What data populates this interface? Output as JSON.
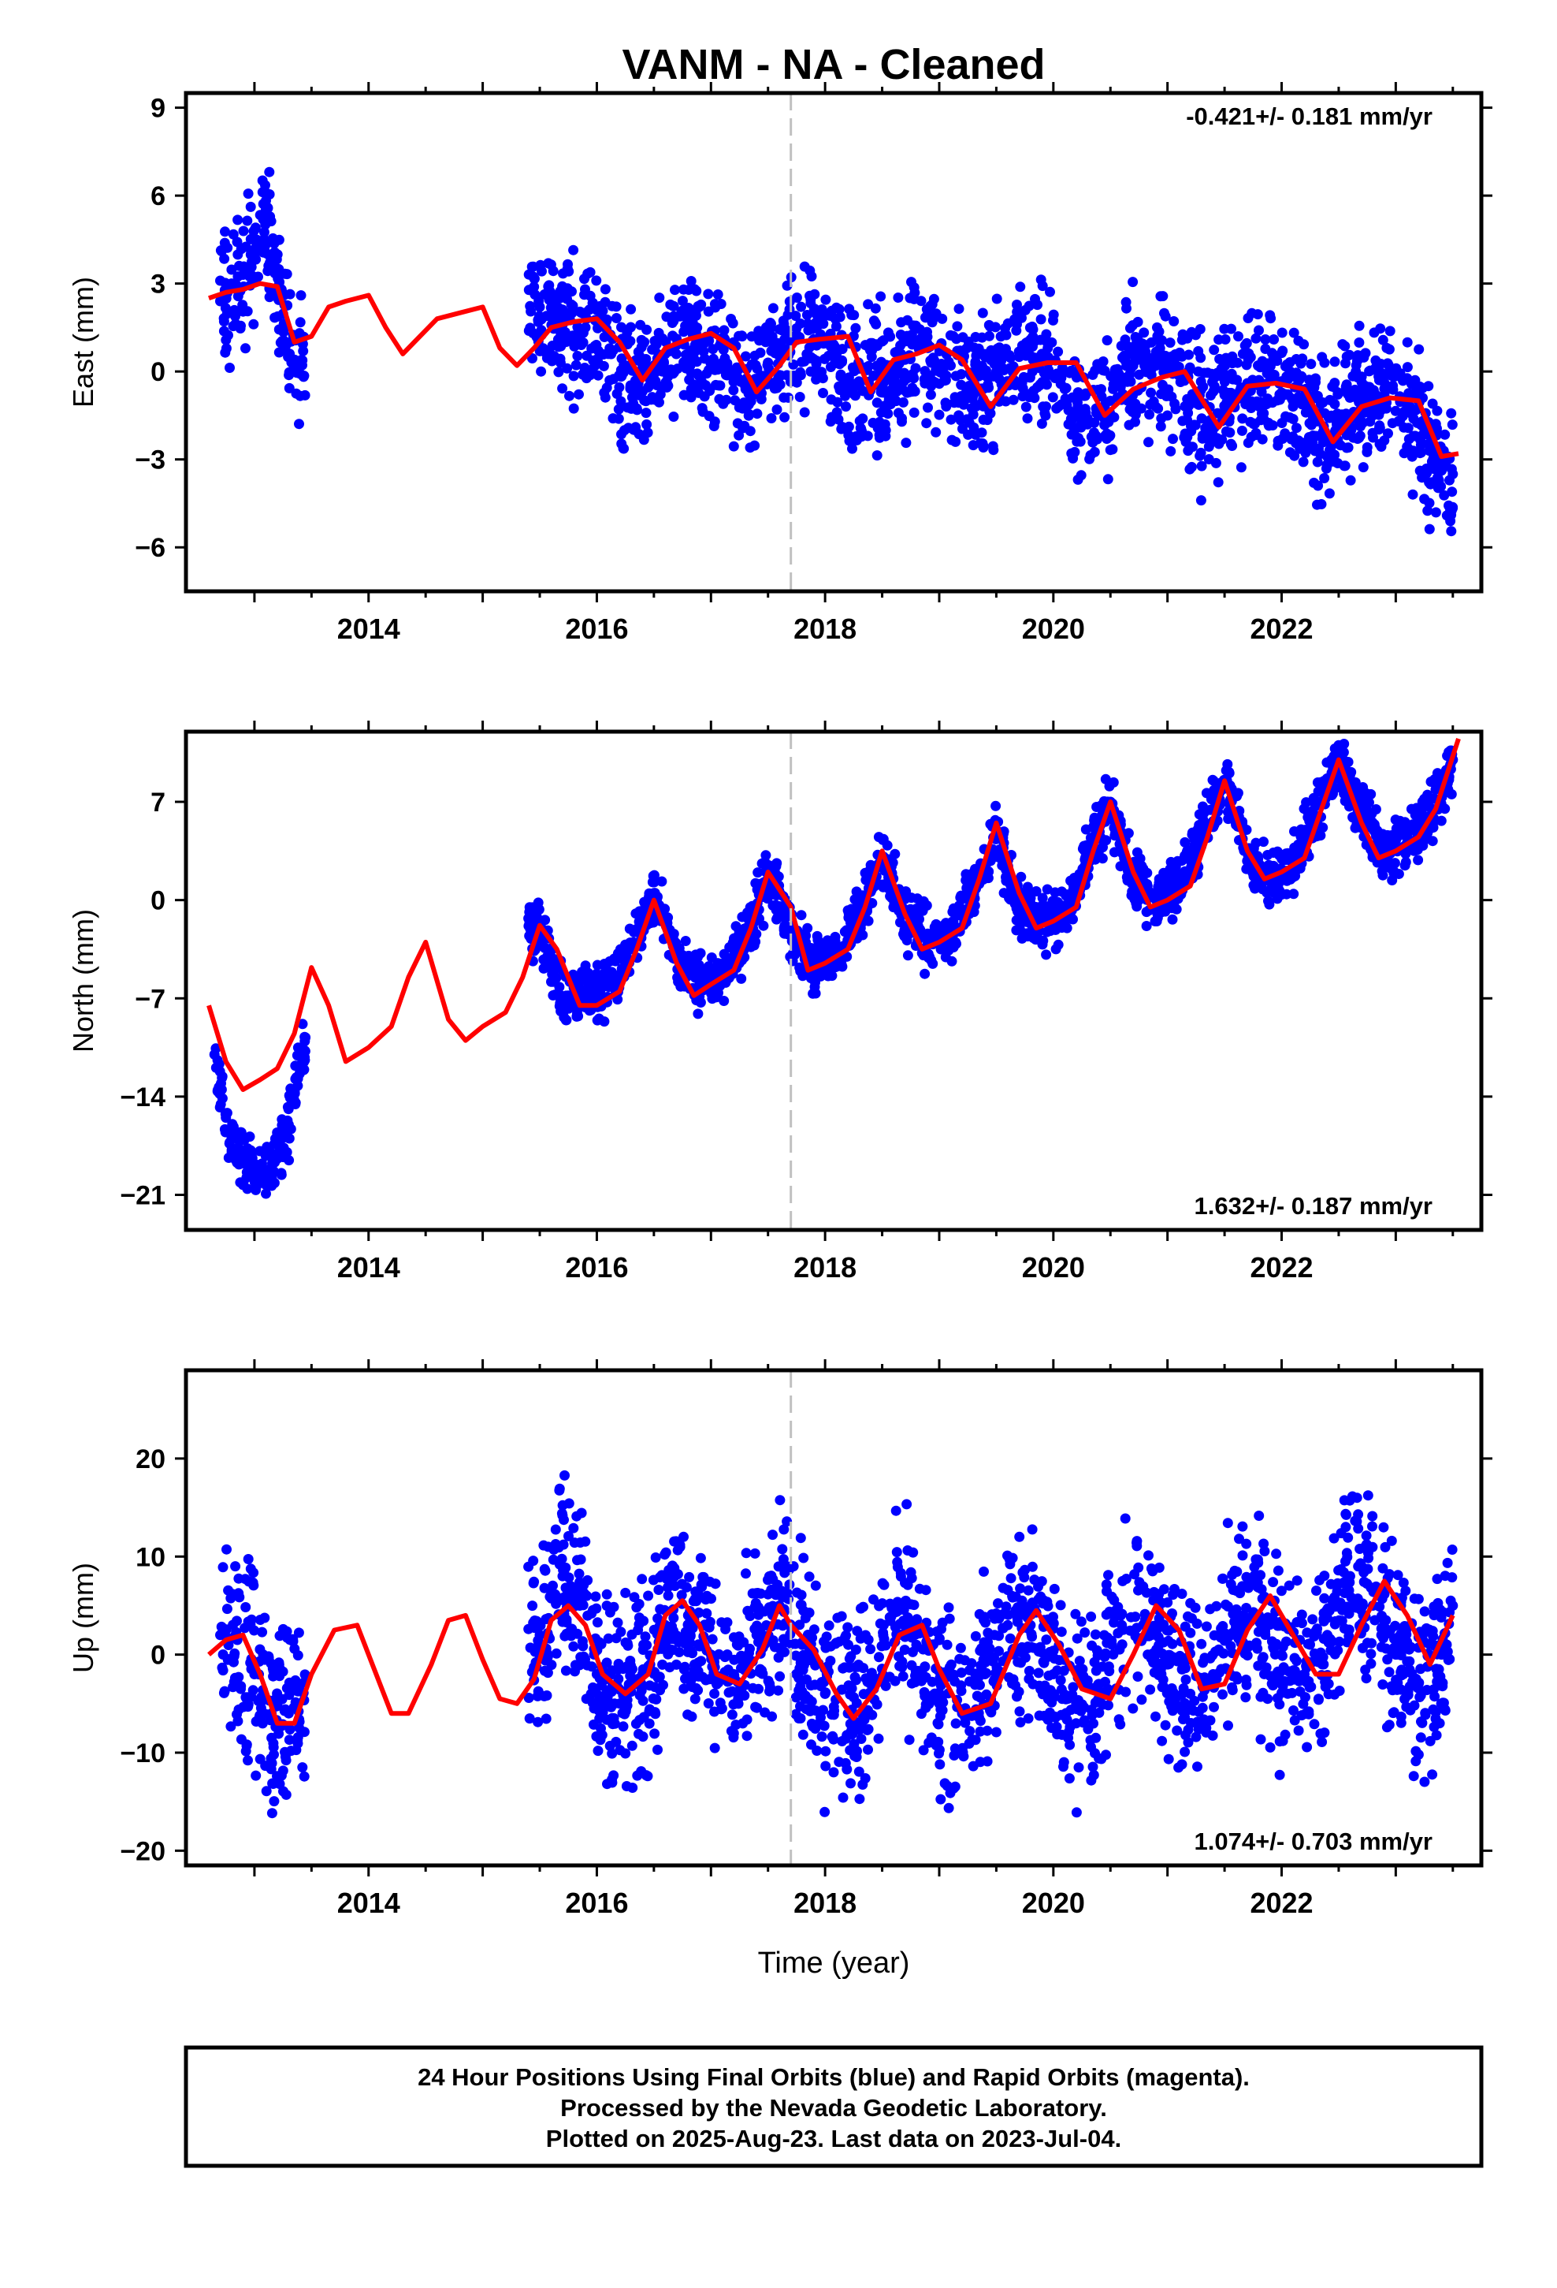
{
  "title": "VANM  - NA - Cleaned",
  "footer": {
    "line1": "24 Hour Positions Using Final Orbits (blue) and Rapid Orbits (magenta).",
    "line2": "Processed by the Nevada Geodetic Laboratory.",
    "line3": "Plotted on 2025-Aug-23. Last data on 2023-Jul-04."
  },
  "colors": {
    "points": "#0000ff",
    "fit": "#ff0000",
    "event_line": "#c0c0c0",
    "frame": "#000000"
  },
  "chart_data": [
    {
      "type": "scatter",
      "id": "east",
      "ylabel": "East (mm)",
      "rate_label": "-0.421+/- 0.181 mm/yr",
      "rate_position": "top-right",
      "xlim": [
        2012.4,
        2023.75
      ],
      "ylim": [
        -7.5,
        9.5
      ],
      "yticks": [
        9,
        6,
        3,
        0,
        -3,
        -6
      ],
      "xticks": [
        2014,
        2016,
        2018,
        2020,
        2022
      ],
      "event_line_x": 2017.7,
      "series": [
        {
          "kind": "points",
          "x": [
            2012.7,
            2012.8,
            2012.9,
            2013.0,
            2013.1,
            2013.2,
            2013.35,
            2015.5,
            2015.7,
            2015.9,
            2016.1,
            2016.3,
            2016.5,
            2016.7,
            2016.9,
            2017.1,
            2017.3,
            2017.5,
            2017.7,
            2017.9,
            2018.1,
            2018.3,
            2018.5,
            2018.7,
            2018.9,
            2019.1,
            2019.3,
            2019.5,
            2019.7,
            2019.9,
            2020.1,
            2020.3,
            2020.5,
            2020.7,
            2020.9,
            2021.1,
            2021.3,
            2021.5,
            2021.7,
            2021.9,
            2022.1,
            2022.3,
            2022.5,
            2022.7,
            2022.9,
            2023.1,
            2023.3,
            2023.5
          ],
          "y": [
            2.4,
            3.0,
            3.3,
            4.0,
            5.5,
            2.8,
            0.2,
            2.2,
            1.6,
            1.5,
            0.6,
            -0.5,
            0.0,
            0.9,
            0.9,
            0.3,
            -0.5,
            0.3,
            1.0,
            1.1,
            0.6,
            -0.5,
            -0.2,
            0.4,
            0.8,
            0.2,
            -0.8,
            0.0,
            0.5,
            0.6,
            -0.6,
            -1.6,
            -1.0,
            0.2,
            0.2,
            -0.1,
            -1.6,
            -0.8,
            -0.4,
            -0.3,
            -1.0,
            -2.2,
            -1.5,
            -1.0,
            -0.8,
            -1.2,
            -2.7,
            -3.5
          ],
          "scatter_mm": 1.1
        },
        {
          "kind": "fit",
          "x": [
            2012.6,
            2012.75,
            2012.9,
            2013.05,
            2013.2,
            2013.35,
            2013.5,
            2013.65,
            2013.8,
            2014.0,
            2014.15,
            2014.3,
            2014.45,
            2014.6,
            2014.8,
            2015.0,
            2015.15,
            2015.3,
            2015.45,
            2015.6,
            2015.8,
            2016.0,
            2016.2,
            2016.4,
            2016.6,
            2016.8,
            2017.0,
            2017.2,
            2017.4,
            2017.6,
            2017.75,
            2017.95,
            2018.2,
            2018.4,
            2018.6,
            2018.8,
            2019.0,
            2019.2,
            2019.45,
            2019.7,
            2019.95,
            2020.2,
            2020.45,
            2020.7,
            2020.95,
            2021.15,
            2021.45,
            2021.7,
            2021.95,
            2022.2,
            2022.45,
            2022.7,
            2022.95,
            2023.2,
            2023.4,
            2023.55
          ],
          "y": [
            2.5,
            2.7,
            2.8,
            3.0,
            2.9,
            1.0,
            1.2,
            2.2,
            2.4,
            2.6,
            1.5,
            0.6,
            1.2,
            1.8,
            2.0,
            2.2,
            0.8,
            0.2,
            0.8,
            1.5,
            1.7,
            1.8,
            1.0,
            -0.3,
            0.8,
            1.1,
            1.3,
            0.8,
            -0.7,
            0.2,
            1.0,
            1.1,
            1.2,
            -0.7,
            0.4,
            0.6,
            0.9,
            0.4,
            -1.2,
            0.1,
            0.3,
            0.3,
            -1.5,
            -0.6,
            -0.2,
            0.0,
            -1.9,
            -0.5,
            -0.4,
            -0.6,
            -2.4,
            -1.2,
            -0.9,
            -1.0,
            -2.9,
            -2.8
          ]
        }
      ]
    },
    {
      "type": "scatter",
      "id": "north",
      "ylabel": "North (mm)",
      "rate_label": "1.632+/- 0.187 mm/yr",
      "rate_position": "bottom-right",
      "xlim": [
        2012.4,
        2023.75
      ],
      "ylim": [
        -23.5,
        12
      ],
      "yticks": [
        7,
        0,
        -7,
        -14,
        -21
      ],
      "xticks": [
        2014,
        2016,
        2018,
        2020,
        2022
      ],
      "event_line_x": 2017.7,
      "series": [
        {
          "kind": "points",
          "x": [
            2012.65,
            2012.75,
            2012.85,
            2012.95,
            2013.05,
            2013.15,
            2013.3,
            2013.4,
            2015.5,
            2015.7,
            2015.9,
            2016.1,
            2016.3,
            2016.5,
            2016.7,
            2016.9,
            2017.1,
            2017.3,
            2017.5,
            2017.7,
            2017.9,
            2018.1,
            2018.3,
            2018.5,
            2018.7,
            2018.9,
            2019.1,
            2019.3,
            2019.5,
            2019.7,
            2019.9,
            2020.1,
            2020.3,
            2020.5,
            2020.7,
            2020.9,
            2021.1,
            2021.3,
            2021.5,
            2021.7,
            2021.9,
            2022.1,
            2022.3,
            2022.5,
            2022.7,
            2022.9,
            2023.1,
            2023.3,
            2023.5
          ],
          "y": [
            -11.0,
            -15.5,
            -18.0,
            -18.5,
            -19.0,
            -19.5,
            -16.0,
            -11.0,
            -1.5,
            -7.0,
            -6.5,
            -6.0,
            -3.5,
            0.5,
            -4.0,
            -6.0,
            -5.5,
            -3.0,
            2.0,
            -2.5,
            -4.5,
            -4.0,
            -1.0,
            3.0,
            -1.0,
            -3.0,
            -2.5,
            1.0,
            5.0,
            -0.5,
            -1.5,
            -1.0,
            3.0,
            7.0,
            1.5,
            0.0,
            1.0,
            5.0,
            8.5,
            3.5,
            1.5,
            2.5,
            6.0,
            10.0,
            6.0,
            3.5,
            4.0,
            6.0,
            10.0
          ],
          "scatter_mm": 1.0
        },
        {
          "kind": "fit",
          "x": [
            2012.6,
            2012.75,
            2012.9,
            2013.05,
            2013.2,
            2013.35,
            2013.5,
            2013.65,
            2013.8,
            2014.0,
            2014.2,
            2014.35,
            2014.5,
            2014.7,
            2014.85,
            2015.0,
            2015.2,
            2015.35,
            2015.5,
            2015.65,
            2015.85,
            2016.0,
            2016.2,
            2016.35,
            2016.5,
            2016.7,
            2016.85,
            2017.0,
            2017.2,
            2017.35,
            2017.5,
            2017.7,
            2017.85,
            2018.0,
            2018.2,
            2018.35,
            2018.5,
            2018.7,
            2018.85,
            2019.0,
            2019.2,
            2019.35,
            2019.5,
            2019.7,
            2019.85,
            2020.0,
            2020.2,
            2020.35,
            2020.5,
            2020.7,
            2020.85,
            2021.0,
            2021.2,
            2021.35,
            2021.5,
            2021.7,
            2021.85,
            2022.0,
            2022.2,
            2022.35,
            2022.5,
            2022.7,
            2022.85,
            2023.0,
            2023.2,
            2023.35,
            2023.55
          ],
          "y": [
            -7.5,
            -11.5,
            -13.5,
            -12.8,
            -12.0,
            -9.5,
            -4.8,
            -7.5,
            -11.5,
            -10.5,
            -9.0,
            -5.5,
            -3.0,
            -8.5,
            -10.0,
            -9.0,
            -8.0,
            -5.5,
            -1.8,
            -3.5,
            -7.5,
            -7.5,
            -6.5,
            -3.5,
            0.0,
            -4.5,
            -6.8,
            -6.0,
            -5.0,
            -2.0,
            2.0,
            -0.5,
            -5.0,
            -4.5,
            -3.5,
            -0.5,
            3.5,
            -1.0,
            -3.5,
            -3.0,
            -2.0,
            1.5,
            5.5,
            0.5,
            -2.0,
            -1.5,
            -0.5,
            3.5,
            7.0,
            2.0,
            -0.5,
            0.0,
            1.0,
            4.5,
            8.5,
            3.5,
            1.5,
            2.0,
            3.0,
            6.5,
            10.0,
            5.5,
            3.0,
            3.5,
            4.5,
            6.5,
            11.5
          ]
        }
      ]
    },
    {
      "type": "scatter",
      "id": "up",
      "ylabel": "Up (mm)",
      "rate_label": "1.074+/- 0.703 mm/yr",
      "rate_position": "bottom-right",
      "xlim": [
        2012.4,
        2023.75
      ],
      "ylim": [
        -21.5,
        29
      ],
      "yticks": [
        20,
        10,
        0,
        -10,
        -20
      ],
      "xticks": [
        2014,
        2016,
        2018,
        2020,
        2022
      ],
      "xlabel": "Time (year)",
      "event_line_x": 2017.7,
      "series": [
        {
          "kind": "points",
          "x": [
            2012.7,
            2012.85,
            2013.0,
            2013.15,
            2013.3,
            2015.5,
            2015.7,
            2015.85,
            2016.0,
            2016.2,
            2016.4,
            2016.6,
            2016.8,
            2017.0,
            2017.2,
            2017.4,
            2017.6,
            2017.8,
            2018.0,
            2018.2,
            2018.4,
            2018.6,
            2018.8,
            2019.0,
            2019.2,
            2019.4,
            2019.6,
            2019.8,
            2020.0,
            2020.2,
            2020.4,
            2020.6,
            2020.8,
            2021.0,
            2021.2,
            2021.4,
            2021.6,
            2021.8,
            2022.0,
            2022.2,
            2022.4,
            2022.6,
            2022.8,
            2023.0,
            2023.2,
            2023.4,
            2023.5
          ],
          "y": [
            2.0,
            1.5,
            -2.0,
            -6.0,
            -6.0,
            2.0,
            8.0,
            5.0,
            -2.0,
            -5.0,
            -2.0,
            3.0,
            4.0,
            0.0,
            -2.0,
            2.0,
            5.0,
            1.0,
            -4.0,
            -6.0,
            -3.0,
            5.0,
            1.0,
            -5.0,
            -6.0,
            -2.0,
            3.0,
            3.0,
            -2.0,
            -5.0,
            -3.0,
            3.0,
            3.0,
            -1.0,
            -4.0,
            -2.0,
            4.0,
            4.0,
            0.0,
            -2.0,
            2.0,
            8.0,
            5.0,
            0.0,
            -3.0,
            0.0,
            5.0
          ],
          "scatter_mm": 4.5
        },
        {
          "kind": "fit",
          "x": [
            2012.6,
            2012.75,
            2012.9,
            2013.05,
            2013.2,
            2013.35,
            2013.5,
            2013.7,
            2013.9,
            2014.05,
            2014.2,
            2014.35,
            2014.55,
            2014.7,
            2014.85,
            2015.0,
            2015.15,
            2015.3,
            2015.45,
            2015.6,
            2015.75,
            2015.9,
            2016.05,
            2016.25,
            2016.45,
            2016.6,
            2016.75,
            2016.9,
            2017.05,
            2017.25,
            2017.45,
            2017.6,
            2017.7,
            2017.9,
            2018.1,
            2018.25,
            2018.45,
            2018.65,
            2018.85,
            2019.0,
            2019.2,
            2019.45,
            2019.7,
            2019.85,
            2020.05,
            2020.25,
            2020.5,
            2020.7,
            2020.9,
            2021.1,
            2021.3,
            2021.5,
            2021.7,
            2021.9,
            2022.1,
            2022.3,
            2022.5,
            2022.7,
            2022.9,
            2023.1,
            2023.3,
            2023.5
          ],
          "y": [
            0.0,
            1.5,
            2.0,
            -2.0,
            -7.0,
            -7.0,
            -2.0,
            2.5,
            3.0,
            -1.5,
            -6.0,
            -6.0,
            -1.0,
            3.5,
            4.0,
            -0.5,
            -4.5,
            -5.0,
            -2.5,
            3.5,
            5.0,
            3.0,
            -2.0,
            -4.0,
            -2.0,
            4.0,
            5.5,
            3.0,
            -2.0,
            -3.0,
            0.5,
            5.0,
            3.0,
            0.5,
            -4.0,
            -6.5,
            -3.5,
            2.0,
            3.0,
            -1.5,
            -6.0,
            -5.0,
            2.0,
            4.5,
            1.0,
            -3.5,
            -4.5,
            0.0,
            5.0,
            2.5,
            -3.5,
            -3.0,
            2.5,
            6.0,
            2.0,
            -2.0,
            -2.0,
            3.0,
            7.5,
            4.0,
            -1.0,
            4.0
          ]
        }
      ]
    }
  ]
}
